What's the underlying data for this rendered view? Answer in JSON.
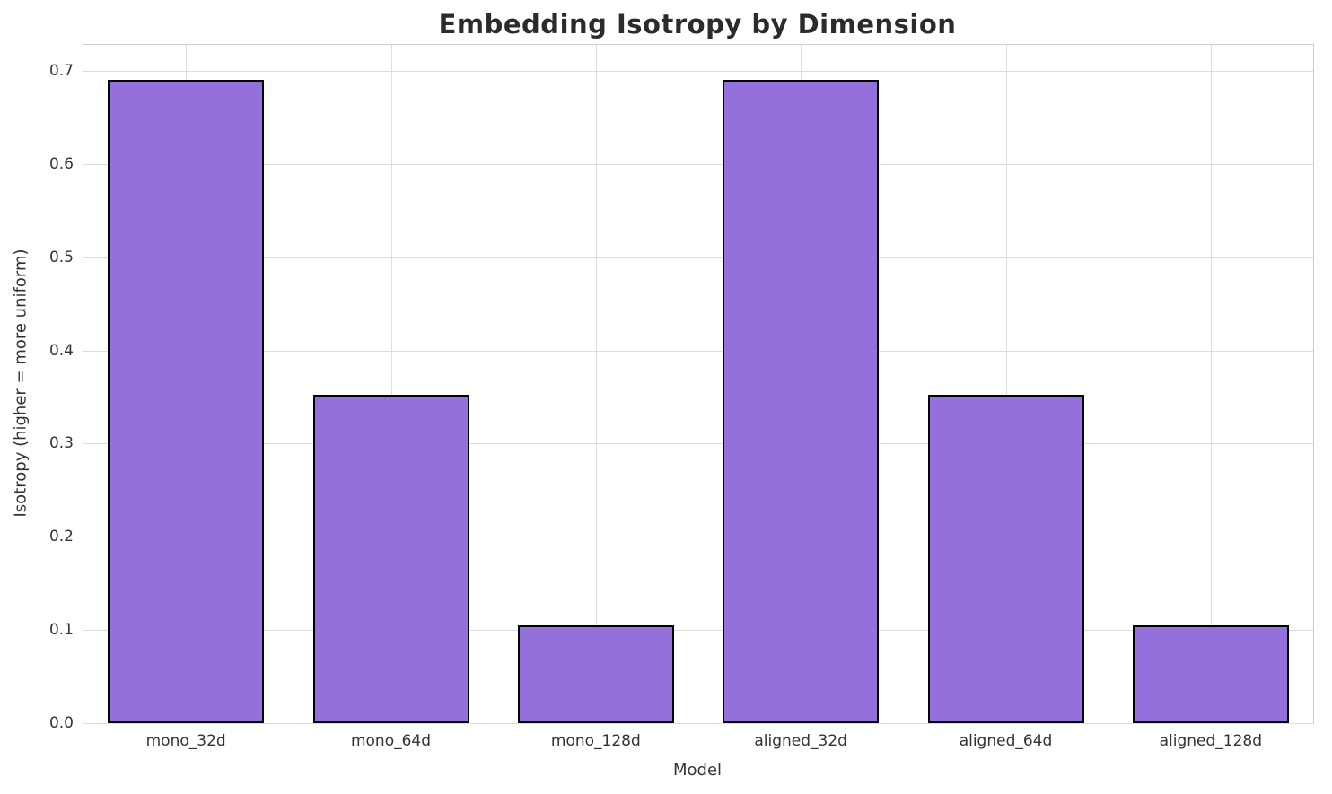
{
  "chart_data": {
    "type": "bar",
    "title": "Embedding Isotropy by Dimension",
    "xlabel": "Model",
    "ylabel": "Isotropy (higher = more uniform)",
    "categories": [
      "mono_32d",
      "mono_64d",
      "mono_128d",
      "aligned_32d",
      "aligned_64d",
      "aligned_128d"
    ],
    "values": [
      0.69,
      0.352,
      0.105,
      0.69,
      0.352,
      0.105
    ],
    "ylim": [
      0,
      0.728
    ],
    "yticks": [
      0.0,
      0.1,
      0.2,
      0.3,
      0.4,
      0.5,
      0.6,
      0.7
    ],
    "grid": true,
    "legend": "none",
    "bar_color": "#9370DB",
    "bar_edge_color": "#000000",
    "grid_color": "#dcdcdc"
  }
}
